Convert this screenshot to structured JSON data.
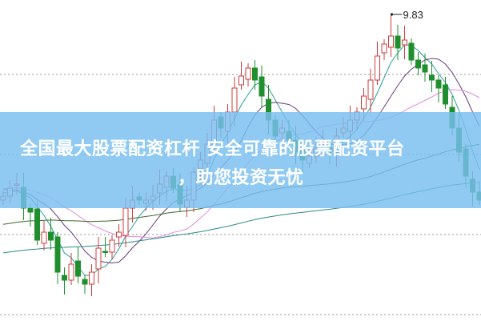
{
  "chart_data": {
    "type": "candlestick",
    "title": "",
    "xlabel": "",
    "ylabel": "",
    "closes": [
      7.56,
      7.66,
      7.71,
      7.41,
      7.36,
      7.01,
      7.11,
      7.01,
      6.61,
      6.51,
      6.71,
      6.56,
      6.46,
      6.61,
      6.91,
      6.86,
      7.01,
      7.11,
      7.41,
      7.51,
      7.51,
      7.51,
      7.56,
      7.71,
      7.81,
      7.66,
      7.46,
      7.51,
      7.86,
      8.01,
      8.21,
      8.51,
      8.41,
      8.61,
      8.91,
      9.06,
      9.16,
      9.01,
      8.81,
      8.51,
      8.31,
      8.41,
      8.26,
      8.11,
      8.01,
      8.06,
      8.16,
      8.21,
      8.11,
      8.31,
      8.41,
      8.51,
      8.61,
      8.81,
      9.01,
      9.31,
      9.46,
      9.56,
      9.41,
      9.51,
      9.26,
      9.16,
      9.11,
      9.01,
      8.91,
      8.71,
      8.41,
      8.11,
      7.81,
      7.61,
      7.51
    ],
    "moving_averages": [
      5,
      10,
      20,
      60,
      120
    ],
    "grid_levels": [
      9.08,
      8.08,
      7.08,
      6.08
    ],
    "grid": "dotted horizontal",
    "annotation": {
      "label": "9.83",
      "value": 9.83
    },
    "colors": {
      "up": "#d23b3b",
      "down": "#1f8f2e",
      "ma5": "#2a9d9d",
      "ma10": "#6a3a7a",
      "ma20": "#e08ce0",
      "ma60": "#3b6b2b",
      "ma120": "#2a8a8a"
    }
  },
  "banner": {
    "line1": "全国最大股票配资杠杆 安全可靠的股票配资平台",
    "line2": "，助您投资无忧"
  }
}
